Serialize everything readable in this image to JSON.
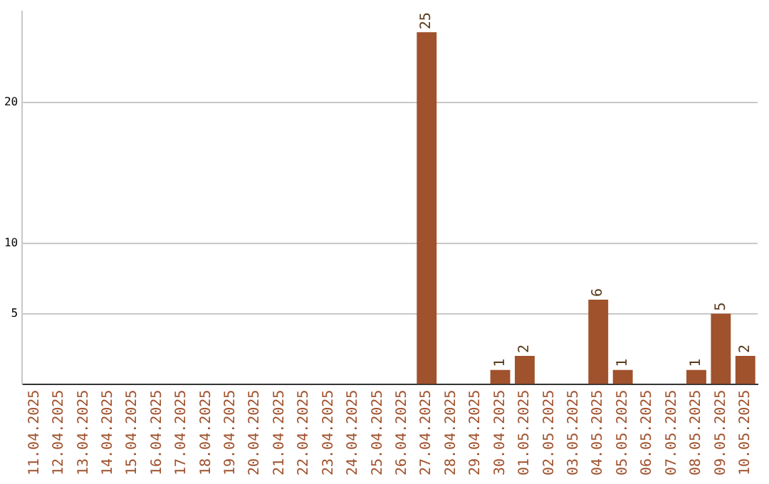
{
  "chart_data": {
    "type": "bar",
    "categories": [
      "11.04.2025",
      "12.04.2025",
      "13.04.2025",
      "14.04.2025",
      "15.04.2025",
      "16.04.2025",
      "17.04.2025",
      "18.04.2025",
      "19.04.2025",
      "20.04.2025",
      "21.04.2025",
      "22.04.2025",
      "23.04.2025",
      "24.04.2025",
      "25.04.2025",
      "26.04.2025",
      "27.04.2025",
      "28.04.2025",
      "29.04.2025",
      "30.04.2025",
      "01.05.2025",
      "02.05.2025",
      "03.05.2025",
      "04.05.2025",
      "05.05.2025",
      "06.05.2025",
      "07.05.2025",
      "08.05.2025",
      "09.05.2025",
      "10.05.2025"
    ],
    "values": [
      0,
      0,
      0,
      0,
      0,
      0,
      0,
      0,
      0,
      0,
      0,
      0,
      0,
      0,
      0,
      0,
      25,
      0,
      0,
      1,
      2,
      0,
      0,
      6,
      1,
      0,
      0,
      1,
      5,
      2
    ],
    "value_labels": [
      null,
      null,
      null,
      null,
      null,
      null,
      null,
      null,
      null,
      null,
      null,
      null,
      null,
      null,
      null,
      null,
      "25",
      null,
      null,
      "1",
      "2",
      null,
      null,
      "6",
      "1",
      null,
      null,
      "1",
      "5",
      "2"
    ],
    "color": "#a0522d",
    "ylim": [
      0,
      26.5
    ],
    "yticks": [
      5,
      10,
      20
    ],
    "grid": "y",
    "legend": false
  }
}
